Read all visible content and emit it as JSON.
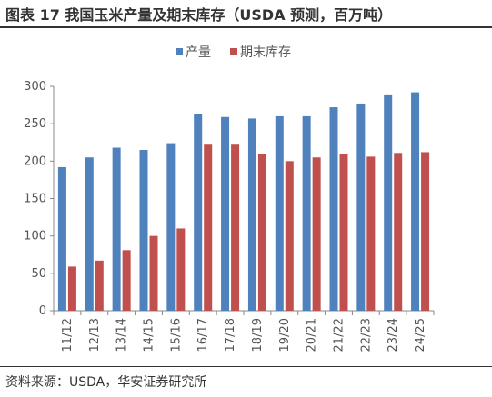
{
  "header": {
    "title": "图表 17  我国玉米产量及期末库存（USDA 预测，百万吨）"
  },
  "footer": {
    "source": "资料来源：USDA，华安证券研究所"
  },
  "colors": {
    "production": "#4F81BD",
    "stock": "#C0504D"
  },
  "chart_data": {
    "type": "bar",
    "title": "",
    "xlabel": "",
    "ylabel": "",
    "ylim": [
      0,
      300
    ],
    "yticks": [
      0,
      50,
      100,
      150,
      200,
      250,
      300
    ],
    "legend_position": "top-center",
    "grid": false,
    "categories": [
      "11/12",
      "12/13",
      "13/14",
      "14/15",
      "15/16",
      "16/17",
      "17/18",
      "18/19",
      "19/20",
      "20/21",
      "21/22",
      "22/23",
      "23/24",
      "24/25"
    ],
    "series": [
      {
        "name": "产量",
        "values": [
          192,
          205,
          218,
          215,
          224,
          263,
          259,
          257,
          260,
          260,
          272,
          277,
          288,
          292
        ]
      },
      {
        "name": "期末库存",
        "values": [
          59,
          67,
          81,
          100,
          110,
          222,
          222,
          210,
          200,
          205,
          209,
          206,
          211,
          212
        ]
      }
    ]
  }
}
